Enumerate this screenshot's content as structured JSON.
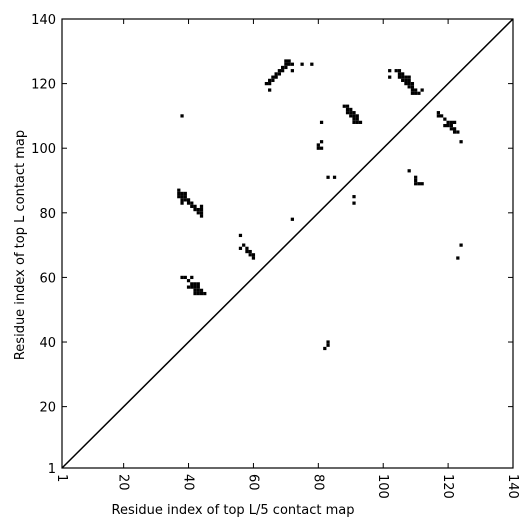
{
  "chart_data": {
    "type": "scatter",
    "xlabel": "Residue index of top L/5 contact map",
    "ylabel": "Residue index of top L contact map",
    "xlim": [
      1,
      140
    ],
    "ylim": [
      1,
      140
    ],
    "xticks": [
      1,
      20,
      40,
      60,
      80,
      100,
      120,
      140
    ],
    "yticks": [
      1,
      20,
      40,
      60,
      80,
      100,
      120,
      140
    ],
    "color": "#000000",
    "x": [
      64,
      65,
      65,
      66,
      66,
      67,
      67,
      68,
      68,
      69,
      69,
      70,
      70,
      71,
      70,
      71,
      72,
      65,
      72,
      75,
      78,
      38,
      81,
      80,
      81,
      80,
      81,
      83,
      85,
      91,
      91,
      88,
      89,
      89,
      90,
      89,
      90,
      91,
      90,
      91,
      92,
      91,
      92,
      91,
      92,
      93,
      102,
      102,
      104,
      105,
      105,
      106,
      105,
      106,
      107,
      108,
      106,
      107,
      108,
      107,
      108,
      109,
      108,
      109,
      109,
      110,
      109,
      110,
      111,
      112,
      117,
      117,
      118,
      119,
      120,
      121,
      119,
      120,
      121,
      121,
      122,
      122,
      123,
      122,
      124,
      108,
      110,
      110,
      110,
      111,
      112,
      124,
      123,
      72,
      37,
      37,
      37,
      38,
      38,
      39,
      39,
      38,
      39,
      40,
      38,
      40,
      41,
      41,
      42,
      42,
      43,
      43,
      44,
      44,
      44,
      44,
      56,
      56,
      57,
      58,
      58,
      59,
      59,
      60,
      60,
      38,
      39,
      40,
      41,
      42,
      43,
      40,
      41,
      41,
      42,
      43,
      42,
      43,
      42,
      43,
      44,
      45,
      44,
      83,
      83,
      82
    ],
    "y": [
      120,
      120,
      121,
      121,
      122,
      122,
      123,
      123,
      124,
      124,
      125,
      125,
      126,
      126,
      127,
      127,
      126,
      118,
      124,
      126,
      126,
      110,
      108,
      100,
      100,
      101,
      102,
      91,
      91,
      85,
      83,
      113,
      113,
      112,
      112,
      111,
      111,
      111,
      110,
      110,
      110,
      109,
      109,
      108,
      108,
      108,
      124,
      122,
      124,
      124,
      123,
      123,
      122,
      122,
      122,
      122,
      121,
      121,
      121,
      120,
      120,
      120,
      119,
      119,
      118,
      118,
      117,
      117,
      117,
      118,
      111,
      110,
      110,
      109,
      108,
      108,
      107,
      107,
      107,
      106,
      106,
      105,
      105,
      108,
      102,
      93,
      91,
      90,
      89,
      89,
      89,
      70,
      66,
      78,
      87,
      86,
      85,
      86,
      85,
      86,
      85,
      84,
      84,
      84,
      83,
      83,
      83,
      82,
      82,
      81,
      81,
      80,
      80,
      81,
      82,
      79,
      73,
      69,
      70,
      69,
      68,
      68,
      67,
      67,
      66,
      60,
      60,
      59,
      60,
      58,
      58,
      57,
      58,
      57,
      57,
      57,
      56,
      56,
      55,
      55,
      55,
      55,
      56,
      40,
      39,
      38
    ]
  }
}
